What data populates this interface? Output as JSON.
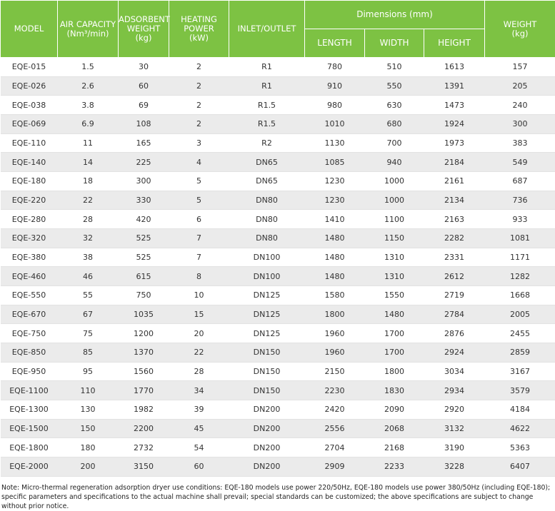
{
  "table": {
    "headers": [
      {
        "lines": [
          "MODEL"
        ]
      },
      {
        "lines": [
          "AIR CAPACITY",
          "(Nm³/min)"
        ]
      },
      {
        "lines": [
          "ADSORBENT",
          "WEIGHT",
          "(kg)"
        ]
      },
      {
        "lines": [
          "HEATING",
          "POWER",
          "(kW)"
        ]
      },
      {
        "lines": [
          "INLET/OUTLET"
        ]
      },
      {
        "lines": [
          "WEIGHT",
          "(kg)"
        ]
      }
    ],
    "group": "Dimensions  (mm)",
    "subheaders": [
      "LENGTH",
      "WIDTH",
      "HEIGHT"
    ],
    "rows": [
      [
        "EQE-015",
        "1.5",
        "30",
        "2",
        "R1",
        "780",
        "510",
        "1613",
        "157"
      ],
      [
        "EQE-026",
        "2.6",
        "60",
        "2",
        "R1",
        "910",
        "550",
        "1391",
        "205"
      ],
      [
        "EQE-038",
        "3.8",
        "69",
        "2",
        "R1.5",
        "980",
        "630",
        "1473",
        "240"
      ],
      [
        "EQE-069",
        "6.9",
        "108",
        "2",
        "R1.5",
        "1010",
        "680",
        "1924",
        "300"
      ],
      [
        "EQE-110",
        "11",
        "165",
        "3",
        "R2",
        "1130",
        "700",
        "1973",
        "383"
      ],
      [
        "EQE-140",
        "14",
        "225",
        "4",
        "DN65",
        "1085",
        "940",
        "2184",
        "549"
      ],
      [
        "EQE-180",
        "18",
        "300",
        "5",
        "DN65",
        "1230",
        "1000",
        "2161",
        "687"
      ],
      [
        "EQE-220",
        "22",
        "330",
        "5",
        "DN80",
        "1230",
        "1000",
        "2134",
        "736"
      ],
      [
        "EQE-280",
        "28",
        "420",
        "6",
        "DN80",
        "1410",
        "1100",
        "2163",
        "933"
      ],
      [
        "EQE-320",
        "32",
        "525",
        "7",
        "DN80",
        "1480",
        "1150",
        "2282",
        "1081"
      ],
      [
        "EQE-380",
        "38",
        "525",
        "7",
        "DN100",
        "1480",
        "1310",
        "2331",
        "1171"
      ],
      [
        "EQE-460",
        "46",
        "615",
        "8",
        "DN100",
        "1480",
        "1310",
        "2612",
        "1282"
      ],
      [
        "EQE-550",
        "55",
        "750",
        "10",
        "DN125",
        "1580",
        "1550",
        "2719",
        "1668"
      ],
      [
        "EQE-670",
        "67",
        "1035",
        "15",
        "DN125",
        "1800",
        "1480",
        "2784",
        "2005"
      ],
      [
        "EQE-750",
        "75",
        "1200",
        "20",
        "DN125",
        "1960",
        "1700",
        "2876",
        "2455"
      ],
      [
        "EQE-850",
        "85",
        "1370",
        "22",
        "DN150",
        "1960",
        "1700",
        "2924",
        "2859"
      ],
      [
        "EQE-950",
        "95",
        "1560",
        "28",
        "DN150",
        "2150",
        "1800",
        "3034",
        "3167"
      ],
      [
        "EQE-1100",
        "110",
        "1770",
        "34",
        "DN150",
        "2230",
        "1830",
        "2934",
        "3579"
      ],
      [
        "EQE-1300",
        "130",
        "1982",
        "39",
        "DN200",
        "2420",
        "2090",
        "2920",
        "4184"
      ],
      [
        "EQE-1500",
        "150",
        "2200",
        "45",
        "DN200",
        "2556",
        "2068",
        "3132",
        "4622"
      ],
      [
        "EQE-1800",
        "180",
        "2732",
        "54",
        "DN200",
        "2704",
        "2168",
        "3190",
        "5363"
      ],
      [
        "EQE-2000",
        "200",
        "3150",
        "60",
        "DN200",
        "2909",
        "2233",
        "3228",
        "6407"
      ]
    ]
  },
  "note": "Note: Micro-thermal regeneration adsorption dryer use conditions: EQE-180 models use power 220/50Hz, EQE-180 models use power 380/50Hz (including EQE-180); specific parameters and specifications to the actual machine shall prevail; special standards can be customized; the above specifications are subject to change without prior notice."
}
